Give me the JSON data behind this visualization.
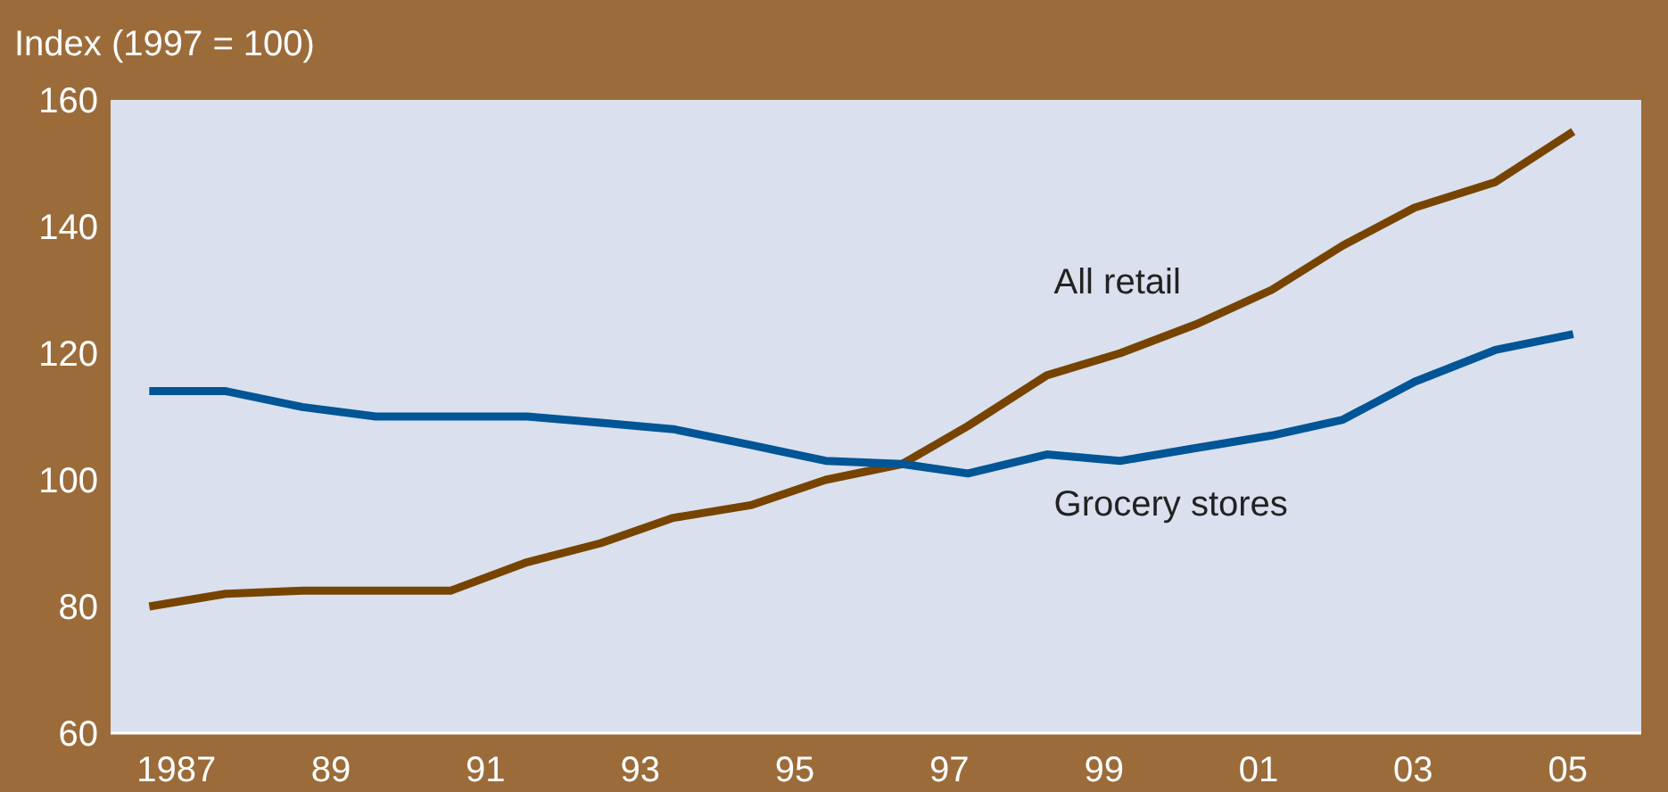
{
  "chart_data": {
    "type": "line",
    "ylabel": "Index (1997 = 100)",
    "x": [
      1986.65,
      1987.64,
      1988.63,
      1989.58,
      1990.55,
      1991.54,
      1992.49,
      1993.43,
      1994.43,
      1995.4,
      1996.39,
      1997.24,
      1998.26,
      1999.21,
      2000.18,
      2001.17,
      2002.09,
      2003.02,
      2004.06,
      2005.07
    ],
    "xlim": [
      1986.15,
      2005.95
    ],
    "xticks": [
      1987,
      {
        "value": 1989,
        "label": "89"
      },
      {
        "value": 1991,
        "label": "91"
      },
      {
        "value": 1993,
        "label": "93"
      },
      {
        "value": 1995,
        "label": "95"
      },
      {
        "value": 1997,
        "label": "97"
      },
      {
        "value": 1999,
        "label": "99"
      },
      {
        "value": 2001,
        "label": "01"
      },
      {
        "value": 2003,
        "label": "03"
      },
      {
        "value": 2005,
        "label": "05"
      }
    ],
    "ylim": [
      60,
      160
    ],
    "yticks": [
      60,
      80,
      100,
      120,
      140,
      160
    ],
    "grid": false,
    "series": [
      {
        "name": "All retail",
        "color": "#774400",
        "values": [
          80,
          82,
          82.5,
          82.5,
          82.5,
          87,
          90,
          94,
          96,
          100,
          102.5,
          108.5,
          116.5,
          120,
          124.5,
          130,
          137,
          143,
          147,
          155
        ]
      },
      {
        "name": "Grocery stores",
        "color": "#005596",
        "values": [
          114,
          114,
          111.5,
          110,
          110,
          110,
          109,
          108,
          105.5,
          103,
          102.5,
          101,
          104,
          103,
          105,
          107,
          109.5,
          115.5,
          120.5,
          123
        ]
      }
    ]
  }
}
